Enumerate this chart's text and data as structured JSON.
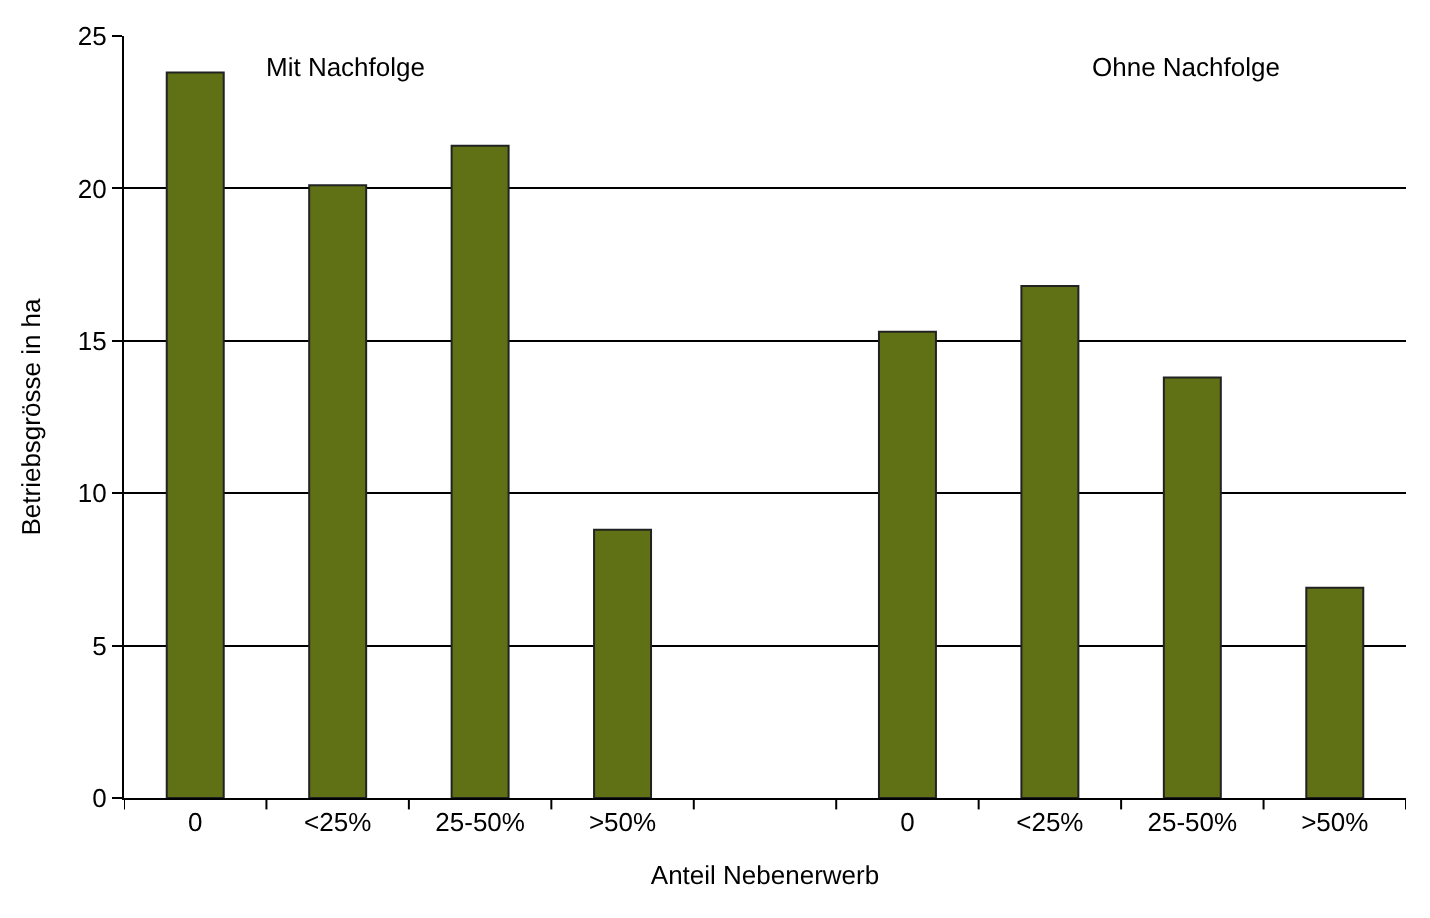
{
  "chart_data": {
    "type": "bar",
    "xlabel": "Anteil Nebenerwerb",
    "ylabel": "Betriebsgrösse in ha",
    "categories": [
      "0",
      "<25%",
      "25-50%",
      ">50%",
      null,
      "0",
      "<25%",
      "25-50%",
      ">50%"
    ],
    "series": [
      {
        "color": "#5f7114",
        "values": [
          23.8,
          20.1,
          21.4,
          8.8,
          null,
          15.3,
          16.8,
          13.8,
          6.9
        ]
      }
    ],
    "ylim": [
      0,
      25
    ],
    "yticks": [
      0,
      5,
      10,
      15,
      20,
      25
    ],
    "grid": "y",
    "legend": false,
    "annotations": [
      "Mit Nachfolge",
      "Ohne Nachfolge"
    ]
  }
}
